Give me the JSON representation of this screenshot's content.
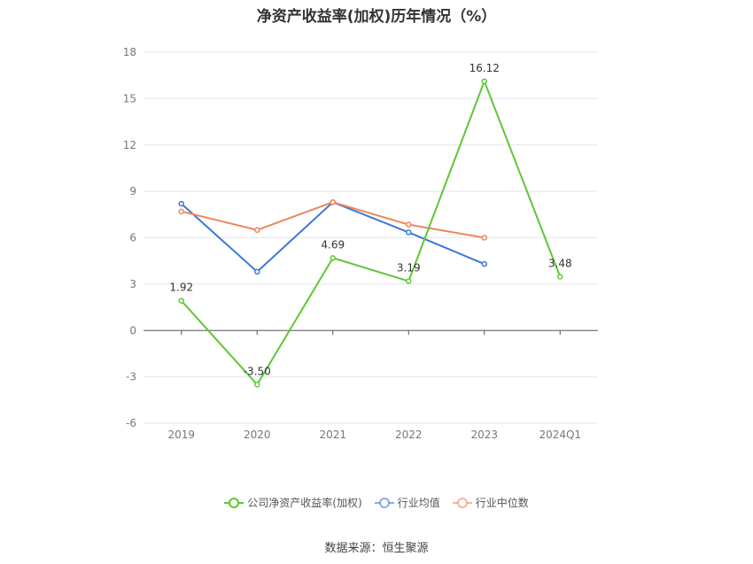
{
  "chart_data": {
    "type": "line",
    "title": "净资产收益率(加权)历年情况（%）",
    "categories": [
      "2019",
      "2020",
      "2021",
      "2022",
      "2023",
      "2024Q1"
    ],
    "ylim": [
      -6,
      18
    ],
    "yticks": [
      -6,
      -3,
      0,
      3,
      6,
      9,
      12,
      15,
      18
    ],
    "grid": true,
    "legend_position": "bottom",
    "series": [
      {
        "name": "公司净资产收益率(加权)",
        "color": "#5ec735",
        "values": [
          1.92,
          -3.5,
          4.69,
          3.19,
          16.12,
          3.48
        ],
        "labels": [
          "1.92",
          "-3.50",
          "4.69",
          "3.19",
          "16.12",
          "3.48"
        ]
      },
      {
        "name": "行业均值",
        "color": "#3c78d8",
        "values": [
          8.2,
          3.8,
          8.3,
          6.35,
          4.3,
          null
        ]
      },
      {
        "name": "行业中位数",
        "color": "#f0855a",
        "values": [
          7.7,
          6.5,
          8.3,
          6.85,
          6.0,
          null
        ]
      }
    ]
  },
  "source": "数据来源：恒生聚源"
}
